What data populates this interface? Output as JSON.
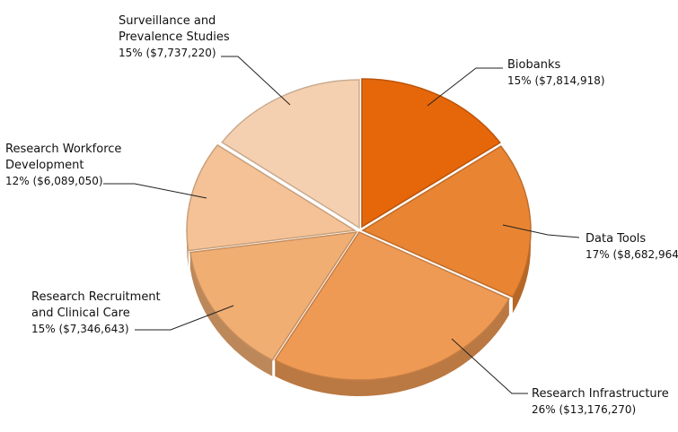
{
  "chart_data": {
    "type": "pie",
    "title": "",
    "slices": [
      {
        "name_lines": [
          "Biobanks"
        ],
        "percent_label": "15%",
        "amount_label": "($7,814,918)",
        "value": 7814918,
        "color": "#e5670a"
      },
      {
        "name_lines": [
          "Data Tools"
        ],
        "percent_label": "17%",
        "amount_label": "($8,682,964)",
        "value": 8682964,
        "color": "#e98432"
      },
      {
        "name_lines": [
          "Research Infrastructure"
        ],
        "percent_label": "26%",
        "amount_label": "($13,176,270)",
        "value": 13176270,
        "color": "#ef9a54"
      },
      {
        "name_lines": [
          "Research Recruitment",
          "and Clinical Care"
        ],
        "percent_label": "15%",
        "amount_label": "($7,346,643)",
        "value": 7346643,
        "color": "#f1ae73"
      },
      {
        "name_lines": [
          "Research Workforce",
          "Development"
        ],
        "percent_label": "12%",
        "amount_label": "($6,089,050)",
        "value": 6089050,
        "color": "#f4c296"
      },
      {
        "name_lines": [
          "Surveillance and",
          "Prevalence Studies"
        ],
        "percent_label": "15%",
        "amount_label": "($7,737,220)",
        "value": 7737220,
        "color": "#f5d0b0"
      }
    ]
  }
}
